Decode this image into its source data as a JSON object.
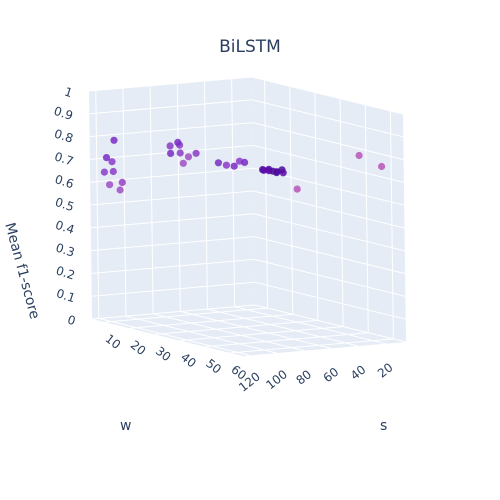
{
  "chart_data": {
    "type": "scatter3d",
    "title": "BiLSTM",
    "xlabel": "s",
    "ylabel": "w",
    "zlabel": "Mean f1-score",
    "x_ticks": [
      "10",
      "20",
      "30",
      "40",
      "50",
      "60"
    ],
    "y_ticks": [
      "20",
      "40",
      "60",
      "80",
      "100",
      "120"
    ],
    "z_ticks": [
      "0",
      "0.1",
      "0.2",
      "0.3",
      "0.4",
      "0.5",
      "0.6",
      "0.7",
      "0.8",
      "0.9",
      "1"
    ],
    "xlim": [
      5,
      65
    ],
    "ylim": [
      5,
      125
    ],
    "zlim": [
      0,
      1
    ],
    "background_color": "#e5ecf6",
    "grid_color": "#ffffff",
    "series": [
      {
        "points": [
          {
            "s": 50,
            "w": 10,
            "f1": 0.78,
            "color": "#b955b8"
          },
          {
            "s": 60,
            "w": 12,
            "f1": 0.76,
            "color": "#b955b8"
          },
          {
            "s": 10,
            "w": 120,
            "f1": 0.6,
            "color": "#a14fc4"
          },
          {
            "s": 10,
            "w": 118,
            "f1": 0.7,
            "color": "#8c3cc7"
          },
          {
            "s": 12,
            "w": 120,
            "f1": 0.8,
            "color": "#7a2bc5"
          },
          {
            "s": 14,
            "w": 118,
            "f1": 0.62,
            "color": "#9a40c6"
          },
          {
            "s": 12,
            "w": 116,
            "f1": 0.58,
            "color": "#a14fc4"
          },
          {
            "s": 8,
            "w": 120,
            "f1": 0.65,
            "color": "#8c3cc7"
          },
          {
            "s": 10,
            "w": 122,
            "f1": 0.72,
            "color": "#7a2bc5"
          },
          {
            "s": 11,
            "w": 119,
            "f1": 0.66,
            "color": "#8c3cc7"
          },
          {
            "s": 34,
            "w": 112,
            "f1": 0.8,
            "color": "#8c3cc7"
          },
          {
            "s": 30,
            "w": 112,
            "f1": 0.82,
            "color": "#8c3cc7"
          },
          {
            "s": 28,
            "w": 108,
            "f1": 0.78,
            "color": "#7a2bc5"
          },
          {
            "s": 30,
            "w": 105,
            "f1": 0.82,
            "color": "#8c3cc7"
          },
          {
            "s": 34,
            "w": 106,
            "f1": 0.78,
            "color": "#a14fc4"
          },
          {
            "s": 32,
            "w": 110,
            "f1": 0.84,
            "color": "#7a2bc5"
          },
          {
            "s": 36,
            "w": 104,
            "f1": 0.8,
            "color": "#8c3cc7"
          },
          {
            "s": 33,
            "w": 108,
            "f1": 0.75,
            "color": "#a14fc4"
          },
          {
            "s": 47,
            "w": 108,
            "f1": 0.79,
            "color": "#7a2bc5"
          },
          {
            "s": 48,
            "w": 104,
            "f1": 0.78,
            "color": "#8c3cc7"
          },
          {
            "s": 50,
            "w": 102,
            "f1": 0.78,
            "color": "#7a2bc5"
          },
          {
            "s": 50,
            "w": 98,
            "f1": 0.8,
            "color": "#8c3cc7"
          },
          {
            "s": 52,
            "w": 98,
            "f1": 0.8,
            "color": "#7a2bc5"
          },
          {
            "s": 58,
            "w": 95,
            "f1": 0.78,
            "color": "#5a0aa8"
          },
          {
            "s": 59,
            "w": 93,
            "f1": 0.78,
            "color": "#5a0aa8"
          },
          {
            "s": 60,
            "w": 92,
            "f1": 0.78,
            "color": "#4b0d9a"
          },
          {
            "s": 61,
            "w": 91,
            "f1": 0.78,
            "color": "#5a0aa8"
          },
          {
            "s": 62,
            "w": 89,
            "f1": 0.79,
            "color": "#4b0d9a"
          },
          {
            "s": 63,
            "w": 90,
            "f1": 0.78,
            "color": "#5a0aa8"
          },
          {
            "s": 62,
            "w": 93,
            "f1": 0.78,
            "color": "#4b0d9a"
          },
          {
            "s": 60,
            "w": 95,
            "f1": 0.79,
            "color": "#5a0aa8"
          },
          {
            "s": 57,
            "w": 94,
            "f1": 0.78,
            "color": "#4b0d9a"
          },
          {
            "s": 62,
            "w": 78,
            "f1": 0.7,
            "color": "#b955b8"
          }
        ]
      }
    ]
  }
}
